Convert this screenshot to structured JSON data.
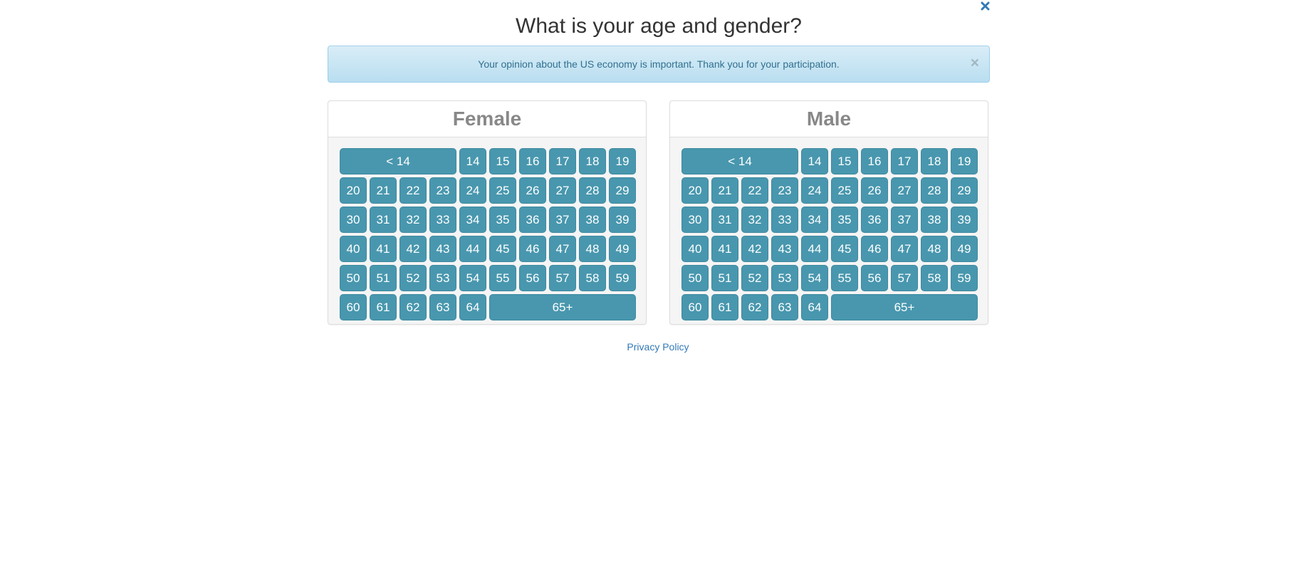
{
  "page": {
    "title": "What is your age and gender?",
    "privacy_label": "Privacy Policy"
  },
  "alert": {
    "text": "Your opinion about the US economy is important. Thank you for your participation.",
    "dismiss_label": "×"
  },
  "panels": {
    "female": {
      "label": "Female",
      "rows": [
        [
          "< 14",
          "14",
          "15",
          "16",
          "17",
          "18",
          "19"
        ],
        [
          "20",
          "21",
          "22",
          "23",
          "24",
          "25",
          "26",
          "27",
          "28",
          "29"
        ],
        [
          "30",
          "31",
          "32",
          "33",
          "34",
          "35",
          "36",
          "37",
          "38",
          "39"
        ],
        [
          "40",
          "41",
          "42",
          "43",
          "44",
          "45",
          "46",
          "47",
          "48",
          "49"
        ],
        [
          "50",
          "51",
          "52",
          "53",
          "54",
          "55",
          "56",
          "57",
          "58",
          "59"
        ],
        [
          "60",
          "61",
          "62",
          "63",
          "64",
          "65+"
        ]
      ]
    },
    "male": {
      "label": "Male",
      "rows": [
        [
          "< 14",
          "14",
          "15",
          "16",
          "17",
          "18",
          "19"
        ],
        [
          "20",
          "21",
          "22",
          "23",
          "24",
          "25",
          "26",
          "27",
          "28",
          "29"
        ],
        [
          "30",
          "31",
          "32",
          "33",
          "34",
          "35",
          "36",
          "37",
          "38",
          "39"
        ],
        [
          "40",
          "41",
          "42",
          "43",
          "44",
          "45",
          "46",
          "47",
          "48",
          "49"
        ],
        [
          "50",
          "51",
          "52",
          "53",
          "54",
          "55",
          "56",
          "57",
          "58",
          "59"
        ],
        [
          "60",
          "61",
          "62",
          "63",
          "64",
          "65+"
        ]
      ]
    }
  },
  "colors": {
    "button": "#4897ae",
    "link": "#337ab7",
    "alert_text": "#31708f"
  },
  "icons": {
    "window_close": "close-icon"
  }
}
